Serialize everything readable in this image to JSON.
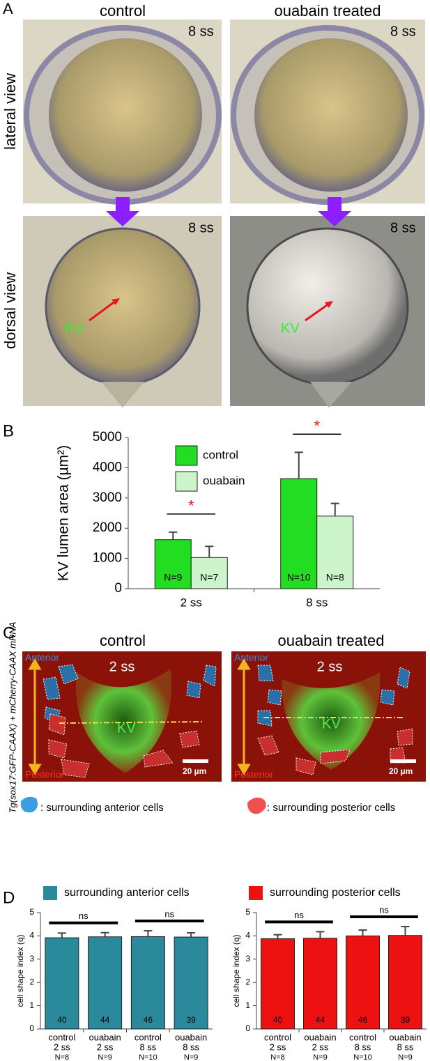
{
  "panel_labels": {
    "a": "A",
    "b": "B",
    "c": "C",
    "d": "D"
  },
  "panel_a": {
    "columns": [
      "control",
      "ouabain treated"
    ],
    "rows": [
      "lateral view",
      "dorsal view"
    ],
    "stage": "8 ss",
    "kv": "KV"
  },
  "panel_c": {
    "columns": [
      "control",
      "ouabain treated"
    ],
    "stage": "2 ss",
    "anterior": "Anterior",
    "posterior": "Posterior",
    "kv": "KV",
    "scale": "20 µm",
    "y_label": "Tg(sox17:GFP-CAAX) + mCherry-CAAX mRNA",
    "legend": [
      ": surrounding anterior cells",
      ": surrounding posterior cells"
    ]
  },
  "chart_data": [
    {
      "type": "bar",
      "y_label": "KV lumen area (µm²)",
      "categories": [
        "2 ss",
        "8 ss"
      ],
      "ylim": [
        0,
        5000
      ],
      "yticks": [
        0,
        1000,
        2000,
        3000,
        4000,
        5000
      ],
      "legend_position": "inside",
      "series": [
        {
          "name": "control",
          "color": "#22dd22",
          "values": [
            1620,
            3640
          ],
          "errors": [
            250,
            870
          ],
          "sample_sizes": [
            "N=9",
            "N=10"
          ]
        },
        {
          "name": "ouabain",
          "color": "#ccf5cc",
          "values": [
            1030,
            2400
          ],
          "errors": [
            370,
            420
          ],
          "sample_sizes": [
            "N=7",
            "N=8"
          ]
        }
      ],
      "annotations": [
        "*",
        "*"
      ],
      "annotation_color": "#dd2222"
    },
    {
      "type": "bar",
      "y_label": "cell shape index (q)",
      "categories": [
        [
          "control",
          "2 ss"
        ],
        [
          "ouabain",
          "2 ss"
        ],
        [
          "control",
          "8 ss"
        ],
        [
          "ouabain",
          "8 ss"
        ]
      ],
      "ylim": [
        0,
        5
      ],
      "yticks": [
        0,
        1,
        2,
        3,
        4,
        5
      ],
      "legend_position": "top",
      "series": [
        {
          "name": "surrounding anterior cells",
          "color": "#2a8a9c",
          "values": [
            3.92,
            3.96,
            3.97,
            3.95
          ],
          "errors": [
            0.2,
            0.18,
            0.25,
            0.18
          ],
          "cell_counts": [
            40,
            44,
            46,
            39
          ]
        }
      ],
      "sample_sizes": [
        "N=8",
        "N=9",
        "N=10",
        "N=9"
      ],
      "annotations": [
        "ns",
        "ns"
      ],
      "annotation_color": "#000000"
    },
    {
      "type": "bar",
      "y_label": "cell shape index (q)",
      "categories": [
        [
          "control",
          "2 ss"
        ],
        [
          "ouabain",
          "2 ss"
        ],
        [
          "control",
          "8 ss"
        ],
        [
          "ouabain",
          "8 ss"
        ]
      ],
      "ylim": [
        0,
        5
      ],
      "yticks": [
        0,
        1,
        2,
        3,
        4,
        5
      ],
      "legend_position": "top",
      "series": [
        {
          "name": "surrounding posterior cells",
          "color": "#ee1111",
          "values": [
            3.88,
            3.9,
            4.0,
            4.02
          ],
          "errors": [
            0.17,
            0.28,
            0.25,
            0.38
          ],
          "cell_counts": [
            40,
            44,
            46,
            39
          ]
        }
      ],
      "sample_sizes": [
        "N=8",
        "N=9",
        "N=10",
        "N=9"
      ],
      "annotations": [
        "ns",
        "ns"
      ],
      "annotation_color": "#000000"
    }
  ]
}
